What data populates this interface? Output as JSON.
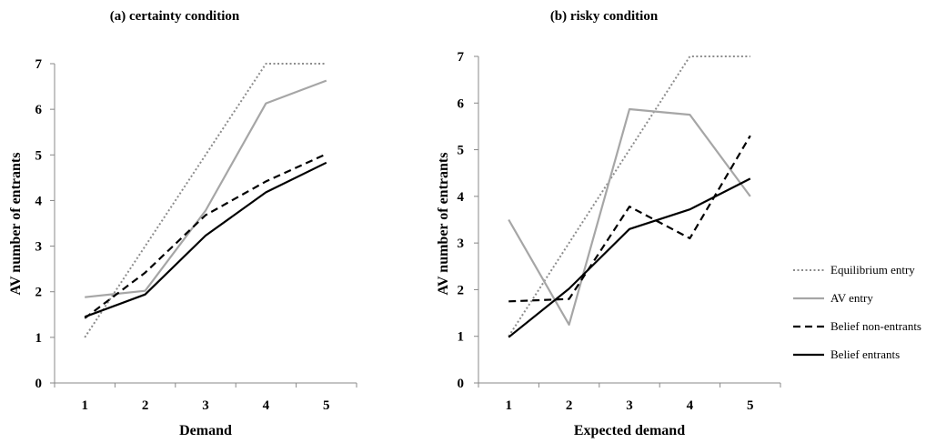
{
  "chart_data": [
    {
      "type": "line",
      "title": "(a) certainty condition",
      "xlabel": "Demand",
      "ylabel": "AV number of entrants",
      "categories": [
        "1",
        "2",
        "3",
        "4",
        "5"
      ],
      "yticks": [
        "0",
        "1",
        "2",
        "3",
        "4",
        "5",
        "6",
        "7"
      ],
      "ylim": [
        0,
        7
      ],
      "grid": false,
      "series": [
        {
          "name": "Equilibrium entry",
          "style": "dotted",
          "color": "#8c8c8c",
          "values": [
            1,
            3,
            5,
            7,
            7
          ]
        },
        {
          "name": "AV entry",
          "style": "solid",
          "color": "#a6a6a6",
          "values": [
            1.88,
            2.02,
            3.78,
            6.13,
            6.63
          ]
        },
        {
          "name": "Belief non-entrants",
          "style": "dashed",
          "color": "#000000",
          "values": [
            1.42,
            2.42,
            3.68,
            4.42,
            5.02
          ]
        },
        {
          "name": "Belief entrants",
          "style": "solid",
          "color": "#000000",
          "values": [
            1.45,
            1.94,
            3.23,
            4.18,
            4.83
          ]
        }
      ]
    },
    {
      "type": "line",
      "title": "(b) risky condition",
      "xlabel": "Expected demand",
      "ylabel": "AV number of entrants",
      "categories": [
        "1",
        "2",
        "3",
        "4",
        "5"
      ],
      "yticks": [
        "0",
        "1",
        "2",
        "3",
        "4",
        "5",
        "6",
        "7"
      ],
      "ylim": [
        0,
        7
      ],
      "grid": false,
      "series": [
        {
          "name": "Equilibrium entry",
          "style": "dotted",
          "color": "#8c8c8c",
          "values": [
            1,
            3,
            5,
            7,
            7
          ]
        },
        {
          "name": "AV entry",
          "style": "solid",
          "color": "#a6a6a6",
          "values": [
            3.5,
            1.25,
            5.87,
            5.75,
            4.0
          ]
        },
        {
          "name": "Belief non-entrants",
          "style": "dashed",
          "color": "#000000",
          "values": [
            1.75,
            1.8,
            3.78,
            3.1,
            5.3
          ]
        },
        {
          "name": "Belief entrants",
          "style": "solid",
          "color": "#000000",
          "values": [
            0.98,
            2.02,
            3.3,
            3.72,
            4.38
          ]
        }
      ]
    }
  ],
  "legend": {
    "placement": "right",
    "items": [
      {
        "label": "Equilibrium entry",
        "style": "dotted",
        "color": "#8c8c8c"
      },
      {
        "label": "AV entry",
        "style": "solid",
        "color": "#a6a6a6"
      },
      {
        "label": "Belief non-entrants",
        "style": "dashed",
        "color": "#000000"
      },
      {
        "label": "Belief entrants",
        "style": "solid",
        "color": "#000000"
      }
    ]
  }
}
